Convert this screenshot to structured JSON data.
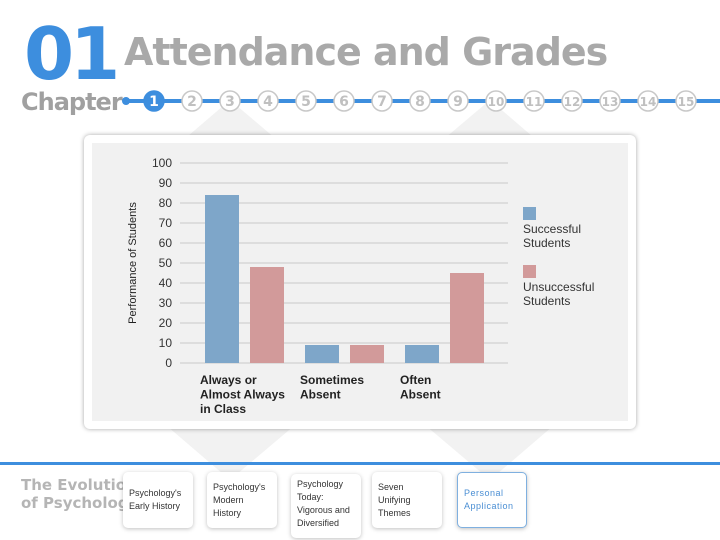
{
  "header": {
    "chapter_number": "01",
    "chapter_label": "Chapter",
    "title": "Attendance and Grades"
  },
  "timeline": {
    "steps": [
      "1",
      "2",
      "3",
      "4",
      "5",
      "6",
      "7",
      "8",
      "9",
      "10",
      "11",
      "12",
      "13",
      "14",
      "15"
    ],
    "active_step": 1
  },
  "chart_data": {
    "type": "bar",
    "title": "",
    "ylabel": "Performance of Students",
    "xlabel": "",
    "ylim": [
      0,
      100
    ],
    "yticks": [
      0,
      10,
      20,
      30,
      40,
      50,
      60,
      70,
      80,
      90,
      100
    ],
    "grid": true,
    "legend_position": "right",
    "categories": [
      [
        "Always or",
        "Almost Always",
        "in Class"
      ],
      [
        "Sometimes",
        "Absent"
      ],
      [
        "Often",
        "Absent"
      ]
    ],
    "series": [
      {
        "name": "Successful Students",
        "name_lines": [
          "Successful",
          "Students"
        ],
        "color": "#7ea6c9",
        "values": [
          84,
          9,
          9
        ]
      },
      {
        "name": "Unsuccessful Students",
        "name_lines": [
          "Unsuccessful",
          "Students"
        ],
        "color": "#d29a9a",
        "values": [
          48,
          9,
          45
        ]
      }
    ]
  },
  "footer": {
    "section_title": [
      "The Evolution",
      "of Psychology"
    ],
    "tabs": [
      {
        "label": "Psychology's Early History",
        "active": false
      },
      {
        "label": "Psychology's Modern History",
        "active": false
      },
      {
        "label": "Psychology Today: Vigorous and Diversified",
        "active": false
      },
      {
        "label": "Seven Unifying Themes",
        "active": false
      },
      {
        "label": "Personal Application",
        "active": true
      }
    ]
  },
  "colors": {
    "accent": "#3d8ede",
    "successful": "#7ea6c9",
    "unsuccessful": "#d29a9a"
  }
}
